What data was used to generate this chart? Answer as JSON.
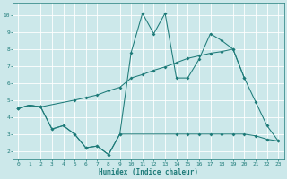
{
  "xlabel": "Humidex (Indice chaleur)",
  "bg_color": "#cce8ea",
  "line_color": "#1e7b79",
  "grid_color": "#ffffff",
  "xlim": [
    -0.5,
    23.5
  ],
  "ylim": [
    1.5,
    10.7
  ],
  "xticks": [
    0,
    1,
    2,
    3,
    4,
    5,
    6,
    7,
    8,
    9,
    10,
    11,
    12,
    13,
    14,
    15,
    16,
    17,
    18,
    19,
    20,
    21,
    22,
    23
  ],
  "yticks": [
    2,
    3,
    4,
    5,
    6,
    7,
    8,
    9,
    10
  ],
  "tick_fontsize": 4.5,
  "xlabel_fontsize": 5.5,
  "line1_x": [
    0,
    1,
    2,
    5,
    6,
    7,
    8,
    9,
    10,
    11,
    12,
    13,
    14,
    15,
    16,
    17,
    18,
    19,
    20
  ],
  "line1_y": [
    4.5,
    4.7,
    4.6,
    5.0,
    5.15,
    5.3,
    5.55,
    5.75,
    6.3,
    6.5,
    6.75,
    6.95,
    7.2,
    7.45,
    7.6,
    7.75,
    7.85,
    8.0,
    6.3
  ],
  "line2_x": [
    0,
    1,
    2,
    3,
    4,
    5,
    6,
    7,
    8,
    9,
    10,
    11,
    12,
    13,
    14,
    15,
    16,
    17,
    18,
    19,
    20,
    21,
    22,
    23
  ],
  "line2_y": [
    4.5,
    4.7,
    4.6,
    3.3,
    3.5,
    3.0,
    2.2,
    2.3,
    1.8,
    3.0,
    7.8,
    10.1,
    8.9,
    10.1,
    6.3,
    6.3,
    7.4,
    8.9,
    8.5,
    8.0,
    6.3,
    4.9,
    3.5,
    2.6
  ],
  "line3_x": [
    0,
    1,
    2,
    3,
    4,
    5,
    6,
    7,
    8,
    9,
    14,
    15,
    16,
    17,
    18,
    19,
    20,
    21,
    22,
    23
  ],
  "line3_y": [
    4.5,
    4.7,
    4.6,
    3.3,
    3.5,
    3.0,
    2.2,
    2.3,
    1.8,
    3.0,
    3.0,
    3.0,
    3.0,
    3.0,
    3.0,
    3.0,
    3.0,
    2.9,
    2.7,
    2.6
  ],
  "marker_size": 2.0,
  "linewidth": 0.75
}
